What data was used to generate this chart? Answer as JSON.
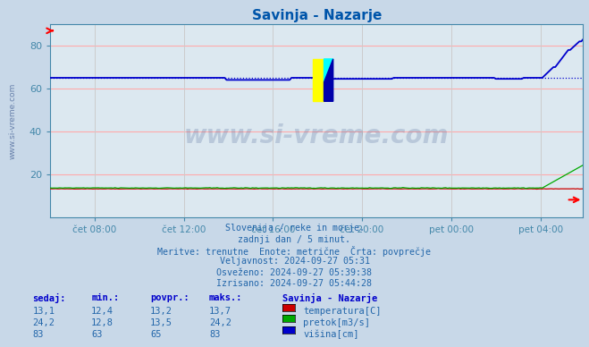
{
  "title": "Savinja - Nazarje",
  "bg_color": "#c8d8e8",
  "plot_bg_color": "#dce8f0",
  "grid_color_h": "#ffaaaa",
  "grid_color_v": "#cccccc",
  "ylim": [
    0,
    90
  ],
  "yticks": [
    20,
    40,
    60,
    80
  ],
  "xlabel_ticks": [
    "čet 08:00",
    "čet 12:00",
    "čet 16:00",
    "čet 20:00",
    "pet 00:00",
    "pet 04:00"
  ],
  "title_color": "#0055aa",
  "axis_color": "#4488aa",
  "tick_color": "#4488aa",
  "watermark": "www.si-vreme.com",
  "watermark_color": "#1a3a7a",
  "watermark_alpha": 0.18,
  "info_lines": [
    "Slovenija / reke in morje.",
    "zadnji dan / 5 minut.",
    "Meritve: trenutne  Enote: metrične  Črta: povprečje",
    "Veljavnost: 2024-09-27 05:31",
    "Osveženo: 2024-09-27 05:39:38",
    "Izrisano: 2024-09-27 05:44:28"
  ],
  "info_color": "#2266aa",
  "table_header": [
    "sedaj:",
    "min.:",
    "povpr.:",
    "maks.:"
  ],
  "table_header_color": "#0000cc",
  "table_rows": [
    {
      "values": [
        "13,1",
        "12,4",
        "13,2",
        "13,7"
      ],
      "label": "temperatura[C]",
      "color": "#cc0000"
    },
    {
      "values": [
        "24,2",
        "12,8",
        "13,5",
        "24,2"
      ],
      "label": "pretok[m3/s]",
      "color": "#00aa00"
    },
    {
      "values": [
        "83",
        "63",
        "65",
        "83"
      ],
      "label": "višina[cm]",
      "color": "#0000cc"
    }
  ],
  "station_label": "Savinja - Nazarje",
  "n_points": 288,
  "temp_color": "#cc0000",
  "pretok_color": "#00aa00",
  "visina_color": "#0000cc",
  "avg_color": "#0000cc"
}
